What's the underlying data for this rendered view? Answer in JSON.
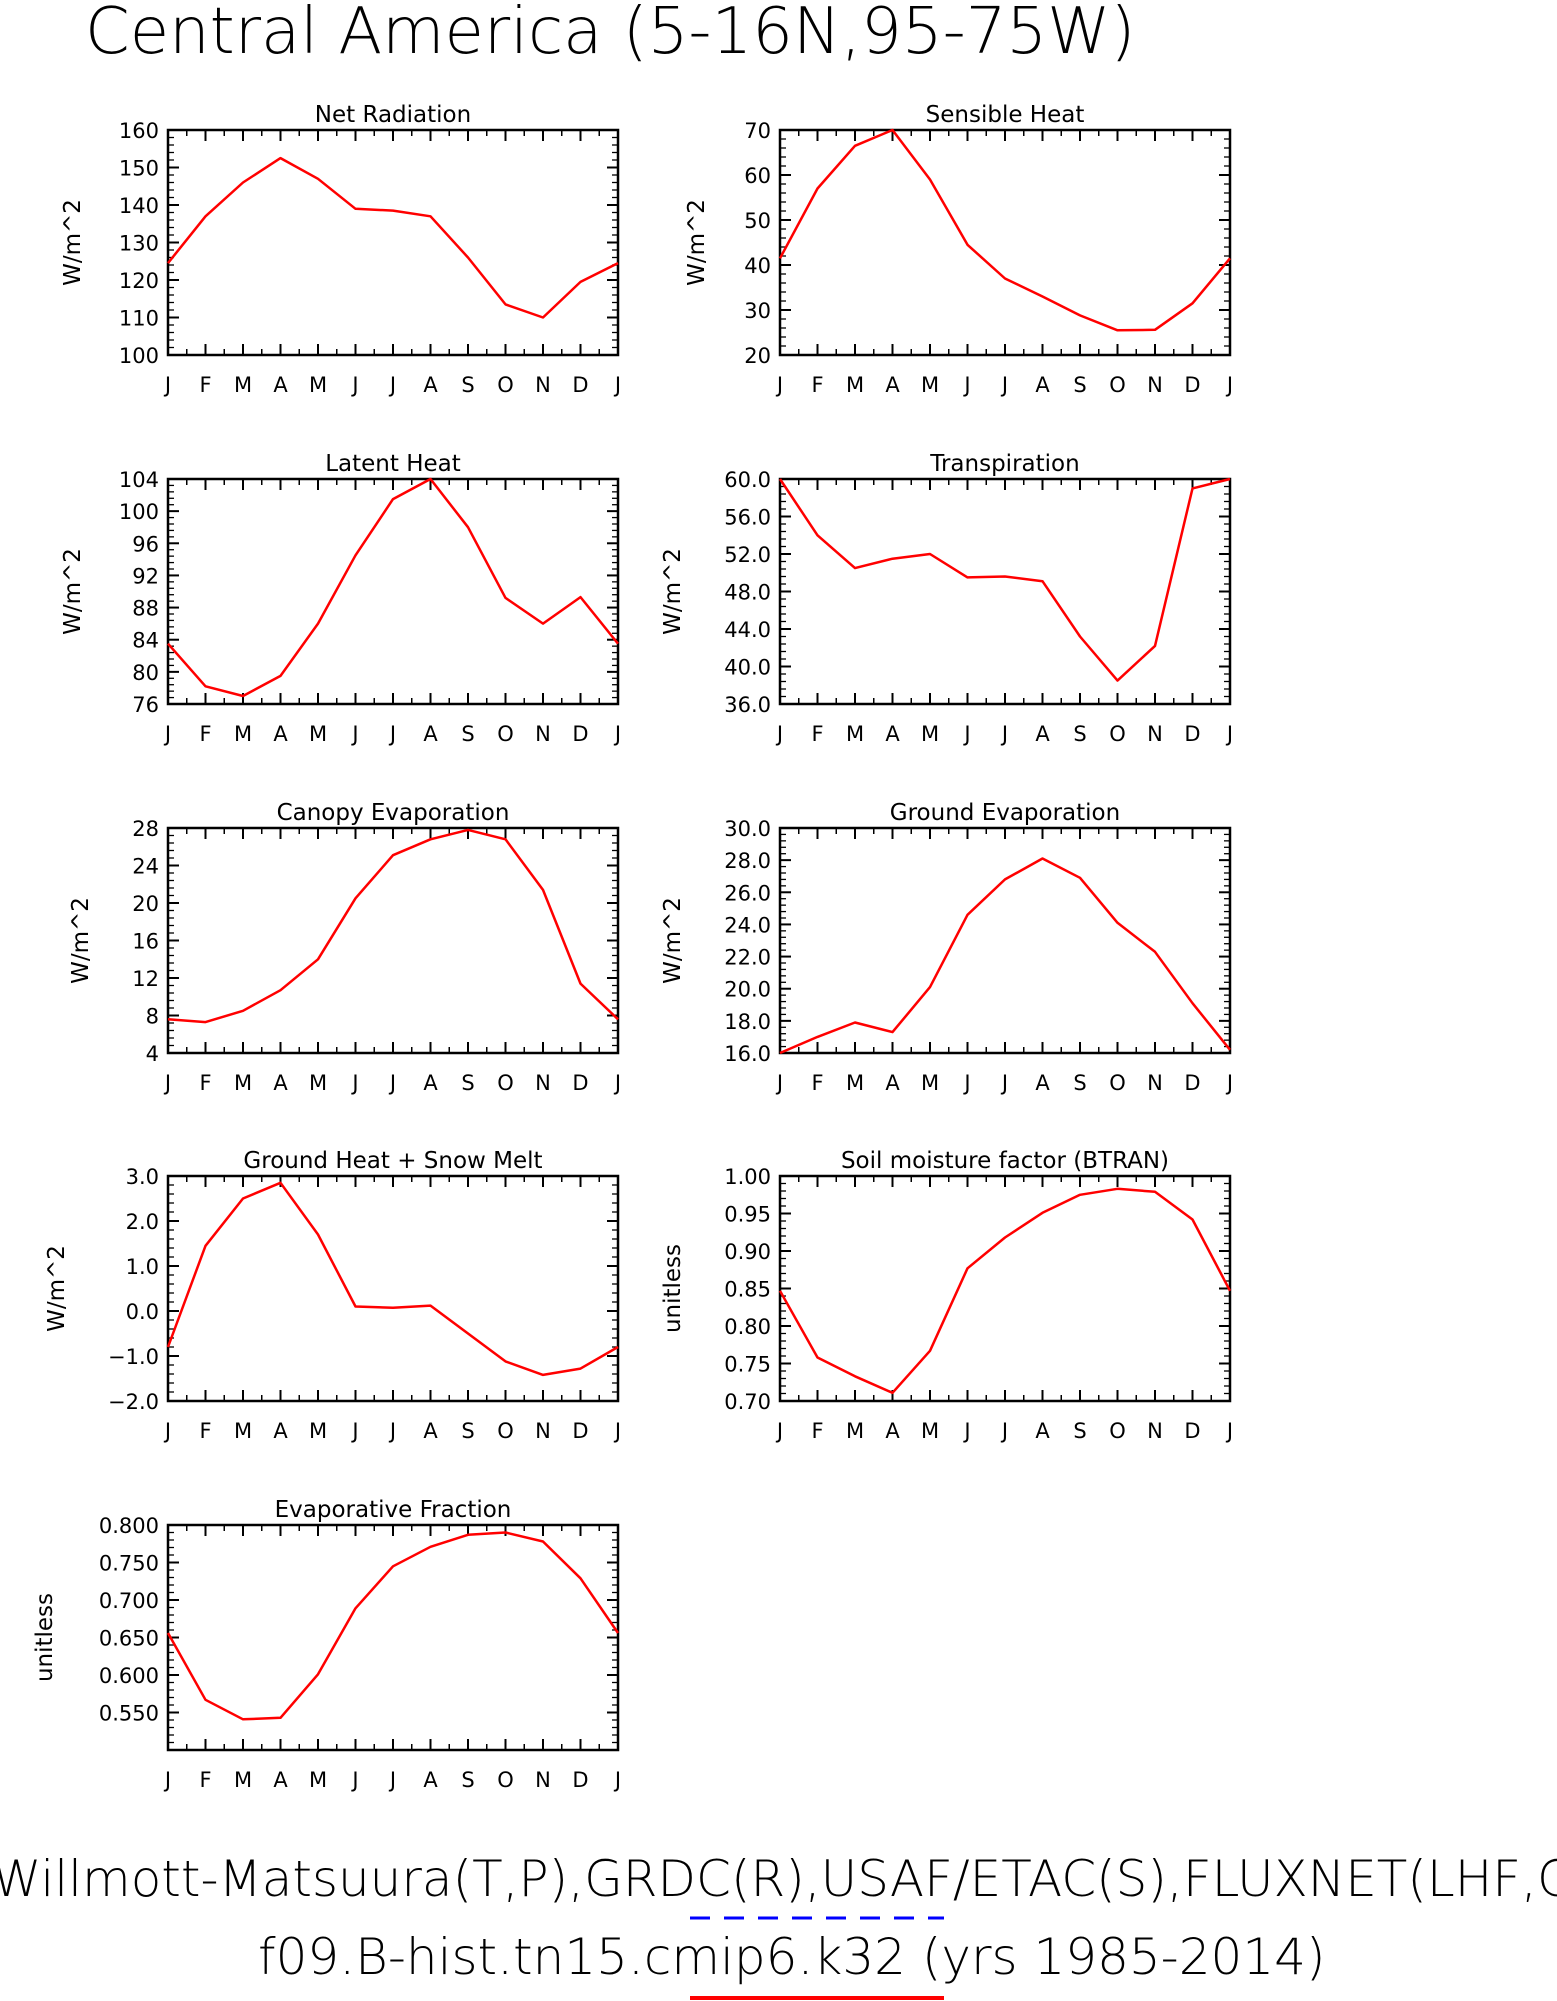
{
  "page": {
    "title": "Central America (5-16N,95-75W)",
    "footer_line1": "Willmott-Matsuura(T,P),GRDC(R),USAF/ETAC(S),FLUXNET(LHF,GP",
    "footer_line2": "f09.B-hist.tn15.cmip6.k32 (yrs 1985-2014)"
  },
  "colors": {
    "model_line": "#ff0000",
    "obs_dash": "#0000ff",
    "axes": "#000000"
  },
  "chart_data": [
    {
      "type": "line",
      "title": "Net Radiation",
      "xlabel": "",
      "ylabel": "W/m^2",
      "categories": [
        "J",
        "F",
        "M",
        "A",
        "M",
        "J",
        "J",
        "A",
        "S",
        "O",
        "N",
        "D",
        "J"
      ],
      "ylim": [
        100,
        160
      ],
      "yticks": [
        "100",
        "110",
        "120",
        "130",
        "140",
        "150",
        "160"
      ],
      "series": [
        {
          "values": [
            124.5,
            137,
            146,
            152.5,
            147,
            139,
            138.5,
            137,
            126,
            113.5,
            110,
            119.5,
            124.5
          ]
        }
      ]
    },
    {
      "type": "line",
      "title": "Sensible Heat",
      "xlabel": "",
      "ylabel": "W/m^2",
      "categories": [
        "J",
        "F",
        "M",
        "A",
        "M",
        "J",
        "J",
        "A",
        "S",
        "O",
        "N",
        "D",
        "J"
      ],
      "ylim": [
        20,
        70
      ],
      "yticks": [
        "20",
        "30",
        "40",
        "50",
        "60",
        "70"
      ],
      "series": [
        {
          "values": [
            41.5,
            57,
            66.5,
            70,
            59,
            44.5,
            37,
            33,
            28.8,
            25.5,
            25.6,
            31.5,
            41.5
          ]
        }
      ]
    },
    {
      "type": "line",
      "title": "Latent Heat",
      "xlabel": "",
      "ylabel": "W/m^2",
      "categories": [
        "J",
        "F",
        "M",
        "A",
        "M",
        "J",
        "J",
        "A",
        "S",
        "O",
        "N",
        "D",
        "J"
      ],
      "ylim": [
        76,
        104
      ],
      "yticks": [
        "76",
        "80",
        "84",
        "88",
        "92",
        "96",
        "100",
        "104"
      ],
      "series": [
        {
          "values": [
            83.5,
            78.2,
            77,
            79.5,
            86,
            94.5,
            101.5,
            104,
            98,
            89.2,
            86,
            89.3,
            83.5
          ]
        }
      ]
    },
    {
      "type": "line",
      "title": "Transpiration",
      "xlabel": "",
      "ylabel": "W/m^2",
      "categories": [
        "J",
        "F",
        "M",
        "A",
        "M",
        "J",
        "J",
        "A",
        "S",
        "O",
        "N",
        "D",
        "J"
      ],
      "ylim": [
        36,
        60
      ],
      "yticks": [
        "36.0",
        "40.0",
        "44.0",
        "48.0",
        "52.0",
        "56.0",
        "60.0"
      ],
      "series": [
        {
          "values": [
            60,
            54,
            50.5,
            51.5,
            52,
            49.5,
            49.6,
            49.1,
            43.2,
            38.5,
            42.2,
            59,
            60
          ]
        }
      ]
    },
    {
      "type": "line",
      "title": "Canopy Evaporation",
      "xlabel": "",
      "ylabel": "W/m^2",
      "categories": [
        "J",
        "F",
        "M",
        "A",
        "M",
        "J",
        "J",
        "A",
        "S",
        "O",
        "N",
        "D",
        "J"
      ],
      "ylim": [
        4,
        28
      ],
      "yticks": [
        "4",
        "8",
        "12",
        "16",
        "20",
        "24",
        "28"
      ],
      "series": [
        {
          "values": [
            7.6,
            7.3,
            8.5,
            10.7,
            14,
            20.5,
            25.1,
            26.8,
            27.8,
            26.8,
            21.4,
            11.4,
            7.6
          ]
        }
      ]
    },
    {
      "type": "line",
      "title": "Ground Evaporation",
      "xlabel": "",
      "ylabel": "W/m^2",
      "categories": [
        "J",
        "F",
        "M",
        "A",
        "M",
        "J",
        "J",
        "A",
        "S",
        "O",
        "N",
        "D",
        "J"
      ],
      "ylim": [
        16,
        30
      ],
      "yticks": [
        "16.0",
        "18.0",
        "20.0",
        "22.0",
        "24.0",
        "26.0",
        "28.0",
        "30.0"
      ],
      "series": [
        {
          "values": [
            16,
            17,
            17.9,
            17.3,
            20.1,
            24.6,
            26.8,
            28.1,
            26.9,
            24.1,
            22.3,
            19.1,
            16.2
          ]
        }
      ]
    },
    {
      "type": "line",
      "title": "Ground Heat + Snow Melt",
      "xlabel": "",
      "ylabel": "W/m^2",
      "categories": [
        "J",
        "F",
        "M",
        "A",
        "M",
        "J",
        "J",
        "A",
        "S",
        "O",
        "N",
        "D",
        "J"
      ],
      "ylim": [
        -2,
        3
      ],
      "yticks": [
        "-2.0",
        "-1.0",
        "0.0",
        "1.0",
        "2.0",
        "3.0"
      ],
      "series": [
        {
          "values": [
            -0.8,
            1.45,
            2.5,
            2.85,
            1.7,
            0.1,
            0.07,
            0.12,
            -0.5,
            -1.12,
            -1.42,
            -1.28,
            -0.8
          ]
        }
      ]
    },
    {
      "type": "line",
      "title": "Soil moisture factor (BTRAN)",
      "xlabel": "",
      "ylabel": "unitless",
      "categories": [
        "J",
        "F",
        "M",
        "A",
        "M",
        "J",
        "J",
        "A",
        "S",
        "O",
        "N",
        "D",
        "J"
      ],
      "ylim": [
        0.7,
        1.0
      ],
      "yticks": [
        "0.70",
        "0.75",
        "0.80",
        "0.85",
        "0.90",
        "0.95",
        "1.00"
      ],
      "series": [
        {
          "values": [
            0.847,
            0.758,
            0.733,
            0.711,
            0.767,
            0.877,
            0.918,
            0.951,
            0.975,
            0.983,
            0.979,
            0.942,
            0.847
          ]
        }
      ]
    },
    {
      "type": "line",
      "title": "Evaporative Fraction",
      "xlabel": "",
      "ylabel": "unitless",
      "categories": [
        "J",
        "F",
        "M",
        "A",
        "M",
        "J",
        "J",
        "A",
        "S",
        "O",
        "N",
        "D",
        "J"
      ],
      "ylim": [
        0.5,
        0.8
      ],
      "yticks": [
        "0.550",
        "0.600",
        "0.650",
        "0.700",
        "0.750",
        "0.800"
      ],
      "series": [
        {
          "values": [
            0.656,
            0.567,
            0.541,
            0.543,
            0.601,
            0.689,
            0.745,
            0.771,
            0.787,
            0.79,
            0.778,
            0.729,
            0.656
          ]
        }
      ]
    }
  ]
}
